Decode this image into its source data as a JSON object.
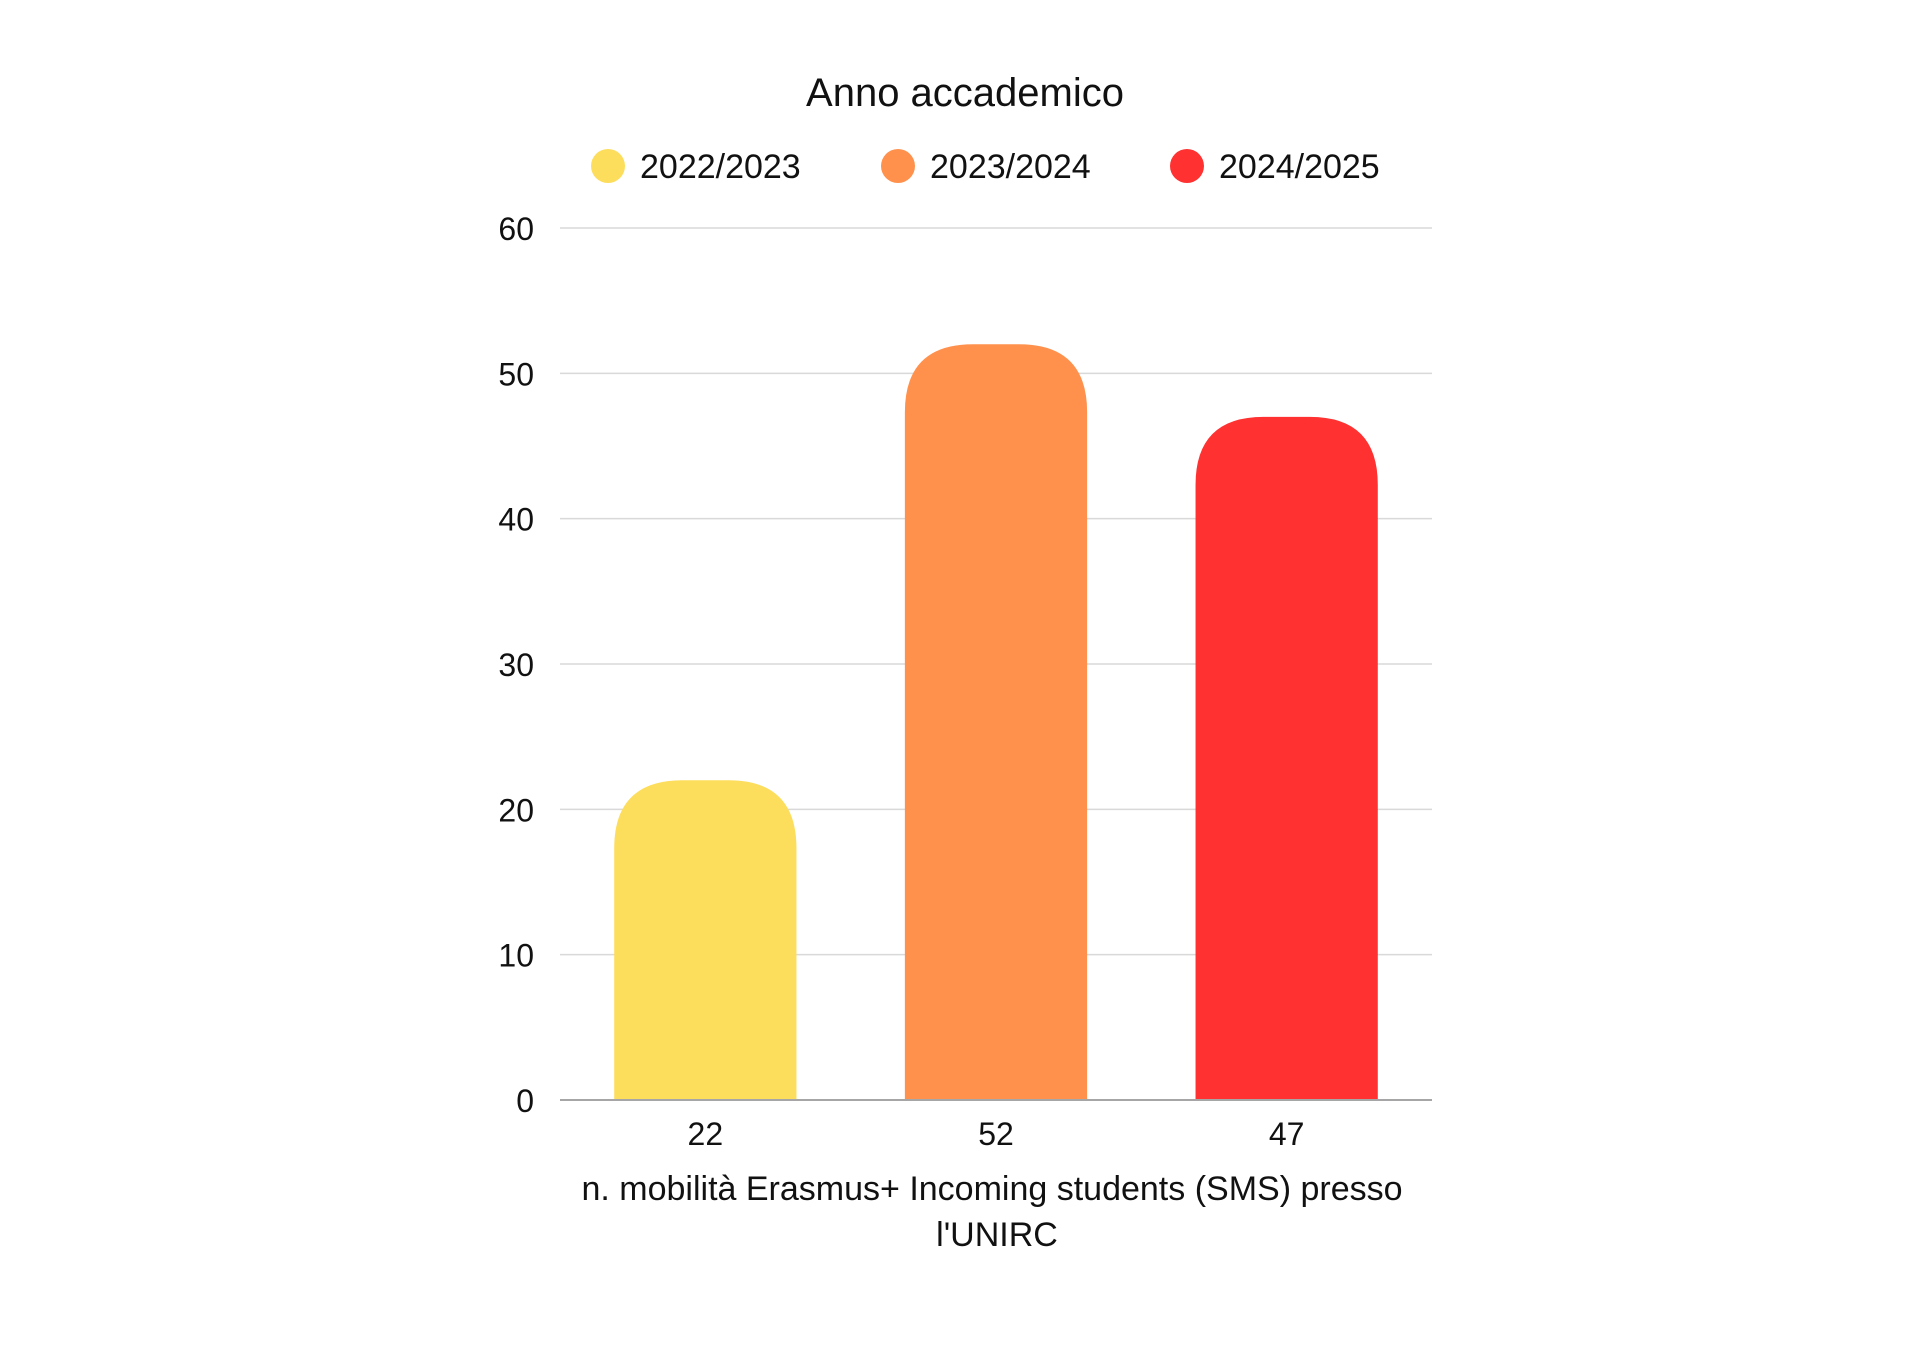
{
  "chart_data": {
    "type": "bar",
    "title": "Anno accademico",
    "categories": [
      "22",
      "52",
      "47"
    ],
    "series": [
      {
        "name": "2022/2023",
        "value": 22,
        "color": "#FDDD5C"
      },
      {
        "name": "2023/2024",
        "value": 52,
        "color": "#FF914D"
      },
      {
        "name": "2024/2025",
        "value": 47,
        "color": "#FF3131"
      }
    ],
    "xlabel_line1": "n. mobilità Erasmus+ Incoming students (SMS) presso",
    "xlabel_line2": "l'UNIRC",
    "ylabel": "",
    "ylim": [
      0,
      60
    ],
    "yticks": [
      "0",
      "10",
      "20",
      "30",
      "40",
      "50",
      "60"
    ],
    "grid": true,
    "legend_position": "top"
  },
  "colors": {
    "gridline": "#D9D9D9",
    "axis": "#A6A6A6",
    "text": "#111111"
  }
}
